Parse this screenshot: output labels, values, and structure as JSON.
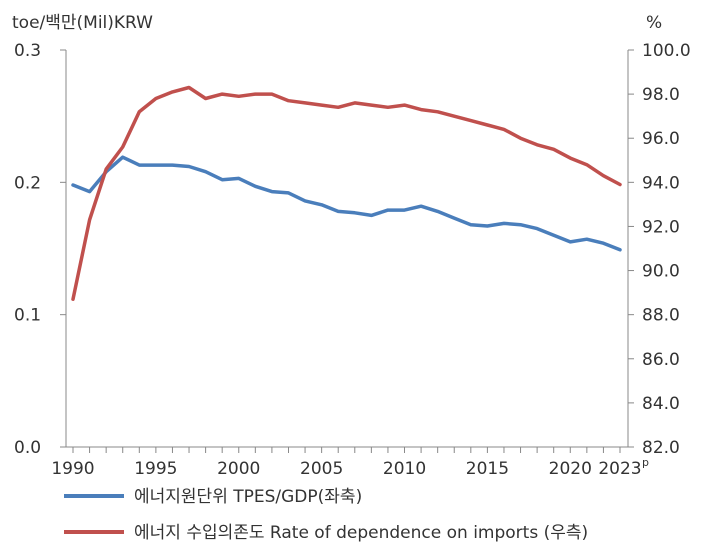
{
  "chart_data": {
    "type": "line",
    "left_unit": "toe/백만(Mil)KRW",
    "right_unit": "%",
    "y_left": {
      "min": 0.0,
      "max": 0.3,
      "ticks": [
        "0.0",
        "0.1",
        "0.2",
        "0.3"
      ]
    },
    "y_right": {
      "min": 82.0,
      "max": 100.0,
      "ticks": [
        "82.0",
        "84.0",
        "86.0",
        "88.0",
        "90.0",
        "92.0",
        "94.0",
        "96.0",
        "98.0",
        "100.0"
      ]
    },
    "x_ticks": [
      {
        "value": 1990,
        "label": "1990",
        "sup": ""
      },
      {
        "value": 1995,
        "label": "1995",
        "sup": ""
      },
      {
        "value": 2000,
        "label": "2000",
        "sup": ""
      },
      {
        "value": 2005,
        "label": "2005",
        "sup": ""
      },
      {
        "value": 2010,
        "label": "2010",
        "sup": ""
      },
      {
        "value": 2015,
        "label": "2015",
        "sup": ""
      },
      {
        "value": 2020,
        "label": "2020",
        "sup": ""
      },
      {
        "value": 2023,
        "label": "2023",
        "sup": "p"
      }
    ],
    "x": [
      1990,
      1991,
      1992,
      1993,
      1994,
      1995,
      1996,
      1997,
      1998,
      1999,
      2000,
      2001,
      2002,
      2003,
      2004,
      2005,
      2006,
      2007,
      2008,
      2009,
      2010,
      2011,
      2012,
      2013,
      2014,
      2015,
      2016,
      2017,
      2018,
      2019,
      2020,
      2021,
      2022,
      2023
    ],
    "series": [
      {
        "name": "에너지원단위 TPES/GDP(좌축)",
        "axis": "left",
        "color": "#4a7ebb",
        "values": [
          0.198,
          0.193,
          0.208,
          0.219,
          0.213,
          0.213,
          0.213,
          0.212,
          0.208,
          0.202,
          0.203,
          0.197,
          0.193,
          0.192,
          0.186,
          0.183,
          0.178,
          0.177,
          0.175,
          0.179,
          0.179,
          0.182,
          0.178,
          0.173,
          0.168,
          0.167,
          0.169,
          0.168,
          0.165,
          0.16,
          0.155,
          0.157,
          0.154,
          0.149
        ]
      },
      {
        "name": "에너지 수입의존도 Rate of dependence on imports (우측)",
        "axis": "right",
        "color": "#c0504d",
        "values": [
          88.7,
          92.3,
          94.6,
          95.6,
          97.2,
          97.8,
          98.1,
          98.3,
          97.8,
          98.0,
          97.9,
          98.0,
          98.0,
          97.7,
          97.6,
          97.5,
          97.4,
          97.6,
          97.5,
          97.4,
          97.5,
          97.3,
          97.2,
          97.0,
          96.8,
          96.6,
          96.4,
          96.0,
          95.7,
          95.5,
          95.1,
          94.8,
          94.3,
          93.9
        ]
      }
    ],
    "grid": false,
    "legend_position": "bottom"
  }
}
